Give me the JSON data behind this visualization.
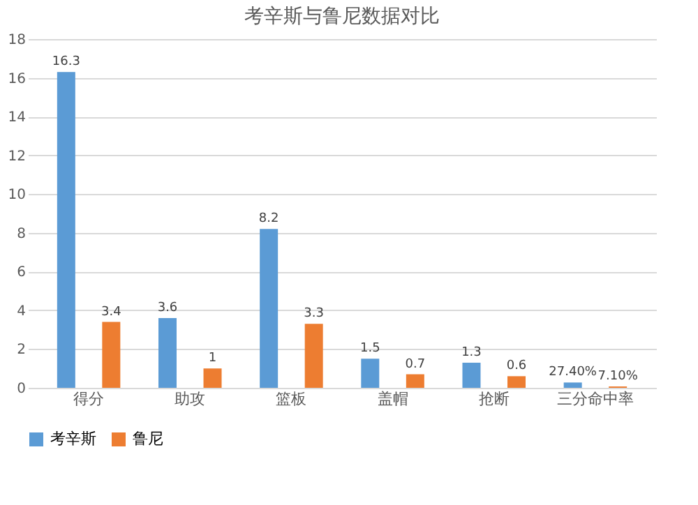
{
  "chart_data": {
    "type": "bar",
    "title": "考辛斯与鲁尼数据对比",
    "categories": [
      "得分",
      "助攻",
      "篮板",
      "盖帽",
      "抢断",
      "三分命中率"
    ],
    "series": [
      {
        "name": "考辛斯",
        "color": "#5b9bd5",
        "values": [
          16.3,
          3.6,
          8.2,
          1.5,
          1.3,
          0.274
        ],
        "value_labels": [
          "16.3",
          "3.6",
          "8.2",
          "1.5",
          "1.3",
          "27.40%"
        ]
      },
      {
        "name": "鲁尼",
        "color": "#ed7d31",
        "values": [
          3.4,
          1,
          3.3,
          0.7,
          0.6,
          0.071
        ],
        "value_labels": [
          "3.4",
          "1",
          "3.3",
          "0.7",
          "0.6",
          "7.10%"
        ]
      }
    ],
    "ylim": [
      0,
      18
    ],
    "yticks": [
      0,
      2,
      4,
      6,
      8,
      10,
      12,
      14,
      16,
      18
    ],
    "grid": "y",
    "legend": "bottom"
  }
}
